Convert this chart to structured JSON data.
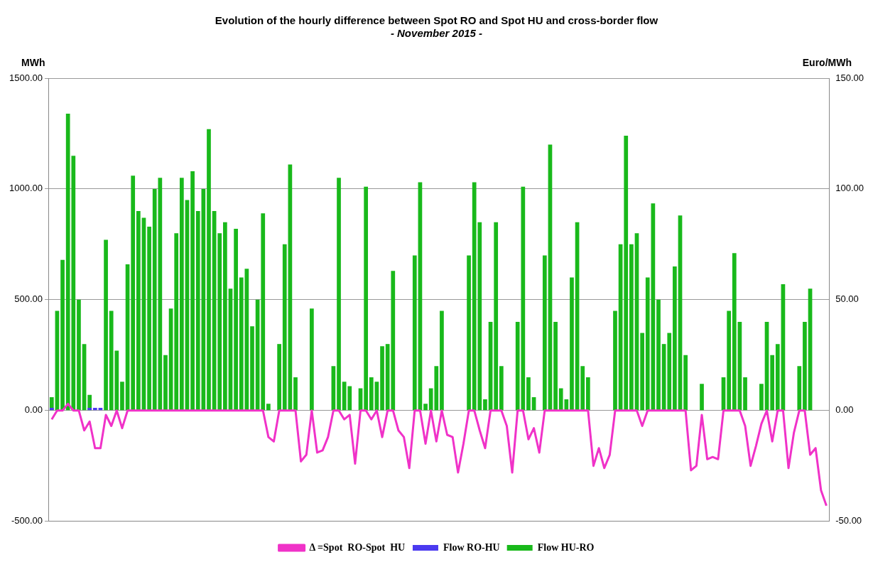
{
  "chart_data": {
    "type": "bar",
    "title": "Evolution of the hourly difference between Spot RO and Spot HU and cross-border flow",
    "subtitle": "- November 2015 -",
    "ylabel": "MWh",
    "y2label": "Euro/MWh",
    "categories": [
      null,
      null,
      null,
      null,
      null,
      null,
      null,
      null,
      null,
      null,
      null,
      null,
      null,
      null,
      null,
      null,
      null,
      null,
      null,
      null,
      null,
      null,
      null,
      null,
      null,
      null,
      null,
      null,
      null,
      null,
      null,
      null,
      null,
      null,
      null,
      null,
      null,
      null,
      null,
      null,
      null,
      null,
      null,
      null,
      null,
      null,
      null,
      null,
      null,
      null,
      null,
      null,
      null,
      null,
      null,
      null,
      null,
      null,
      null,
      null,
      null,
      null,
      null,
      null,
      null,
      null,
      null,
      null,
      null,
      null,
      null,
      null,
      null,
      null,
      null,
      null,
      null,
      null,
      null,
      null,
      null,
      null,
      null,
      null,
      null,
      null,
      null,
      null,
      null,
      null,
      null,
      null,
      null,
      null,
      null,
      null,
      null,
      null,
      null,
      null,
      null,
      null,
      null,
      null,
      null,
      null,
      null,
      null,
      null,
      null,
      null,
      null,
      null,
      null,
      null,
      null,
      null,
      null,
      null,
      null,
      null,
      null,
      null,
      null,
      null,
      null,
      null,
      null,
      null,
      null,
      null,
      null,
      null,
      null,
      null,
      null,
      null,
      null,
      null,
      null,
      null,
      null,
      null,
      null
    ],
    "series": [
      {
        "name": "Flow HU-RO",
        "color": "#19b91b",
        "values": [
          60,
          450,
          680,
          1340,
          1150,
          500,
          300,
          70,
          0,
          0,
          770,
          450,
          270,
          130,
          660,
          1060,
          900,
          870,
          830,
          1000,
          1050,
          250,
          460,
          800,
          1050,
          950,
          1080,
          900,
          1000,
          1270,
          900,
          800,
          850,
          550,
          820,
          600,
          640,
          380,
          500,
          890,
          30,
          0,
          300,
          750,
          1110,
          150,
          0,
          0,
          460,
          0,
          0,
          0,
          200,
          1050,
          130,
          110,
          0,
          100,
          1010,
          150,
          130,
          290,
          300,
          630,
          0,
          0,
          0,
          700,
          1030,
          30,
          100,
          200,
          450,
          0,
          0,
          0,
          0,
          700,
          1030,
          850,
          50,
          400,
          850,
          200,
          0,
          0,
          400,
          1010,
          150,
          60,
          0,
          700,
          1200,
          400,
          100,
          50,
          600,
          850,
          200,
          150,
          0,
          0,
          0,
          0,
          450,
          750,
          1240,
          750,
          800,
          350,
          600,
          935,
          500,
          300,
          350,
          650,
          880,
          250,
          0,
          0,
          120,
          0,
          0,
          0,
          150,
          450,
          710,
          400,
          150,
          0,
          0,
          120,
          400,
          250,
          300,
          570,
          0,
          0,
          200,
          400,
          550,
          0,
          0,
          0
        ]
      },
      {
        "name": "Flow RO-HU",
        "color": "#4b3af0",
        "values": [
          12,
          null,
          null,
          null,
          null,
          null,
          null,
          12,
          12,
          12,
          null,
          null,
          null,
          null,
          null,
          null,
          null,
          null,
          null,
          null,
          null,
          null,
          null,
          null,
          null,
          null,
          null,
          null,
          null,
          null,
          null,
          null,
          null,
          null,
          null,
          null,
          null,
          null,
          null,
          null,
          null,
          null,
          null,
          null,
          null,
          null,
          null,
          null,
          null,
          null,
          null,
          null,
          null,
          null,
          null,
          null,
          null,
          null,
          null,
          null,
          null,
          null,
          null,
          null,
          null,
          null,
          null,
          null,
          null,
          null,
          null,
          null,
          null,
          null,
          null,
          null,
          null,
          null,
          null,
          null,
          null,
          null,
          null,
          null,
          null,
          null,
          null,
          null,
          null,
          null,
          null,
          null,
          null,
          null,
          null,
          null,
          null,
          null,
          null,
          null,
          null,
          null,
          null,
          null,
          null,
          null,
          null,
          null,
          null,
          null,
          null,
          null,
          null,
          null,
          null,
          null,
          null,
          null,
          null,
          null,
          null,
          null,
          null,
          null,
          null,
          null,
          null,
          null,
          null,
          null,
          null,
          null,
          null,
          null,
          null,
          null,
          null,
          null,
          null,
          null,
          null,
          null,
          null,
          null
        ]
      },
      {
        "name": "Δ =Spot  RO-Spot  HU",
        "type": "line",
        "axis": "y2",
        "color": "#f032c8",
        "values": [
          -4,
          0,
          0,
          3,
          0,
          0,
          -9,
          -5,
          -17,
          -17,
          -2,
          -7,
          0,
          -8,
          0,
          0,
          0,
          0,
          0,
          0,
          0,
          0,
          0,
          0,
          0,
          0,
          0,
          0,
          0,
          0,
          0,
          0,
          0,
          0,
          0,
          0,
          0,
          0,
          0,
          0,
          -12,
          -14,
          0,
          0,
          0,
          0,
          -23,
          -20,
          0,
          -19,
          -18,
          -12,
          0,
          0,
          -4,
          -2,
          -24,
          0,
          0,
          -4,
          0,
          -12,
          0,
          0,
          -9,
          -12,
          -26,
          0,
          0,
          -15,
          0,
          -14,
          0,
          -11,
          -12,
          -28,
          -15,
          0,
          0,
          -9,
          -17,
          0,
          0,
          0,
          -7,
          -28,
          0,
          0,
          -13,
          -8,
          -19,
          0,
          0,
          0,
          0,
          0,
          0,
          0,
          0,
          0,
          -25,
          -17,
          -26,
          -20,
          0,
          0,
          0,
          0,
          0,
          -7,
          0,
          0,
          0,
          0,
          0,
          0,
          0,
          0,
          -27,
          -25,
          -2,
          -22,
          -21,
          -22,
          0,
          0,
          0,
          0,
          -7,
          -25,
          -16,
          -6,
          0,
          -14,
          0,
          0,
          -26,
          -10,
          0,
          0,
          -20,
          -17,
          -36,
          -43
        ]
      }
    ],
    "ylim": [
      -500,
      1500
    ],
    "yticks": [
      {
        "value": -500,
        "label": "-500.00"
      },
      {
        "value": 0,
        "label": "0.00"
      },
      {
        "value": 500,
        "label": "500.00"
      },
      {
        "value": 1000,
        "label": "1000.00"
      },
      {
        "value": 1500,
        "label": "1500.00"
      }
    ],
    "y2lim": [
      -50,
      150
    ],
    "y2ticks": [
      {
        "value": -50,
        "label": "-50.00"
      },
      {
        "value": 0,
        "label": "0.00"
      },
      {
        "value": 50,
        "label": "50.00"
      },
      {
        "value": 100,
        "label": "100.00"
      },
      {
        "value": 150,
        "label": "150.00"
      }
    ],
    "grid": "y",
    "legend": "bottom"
  }
}
